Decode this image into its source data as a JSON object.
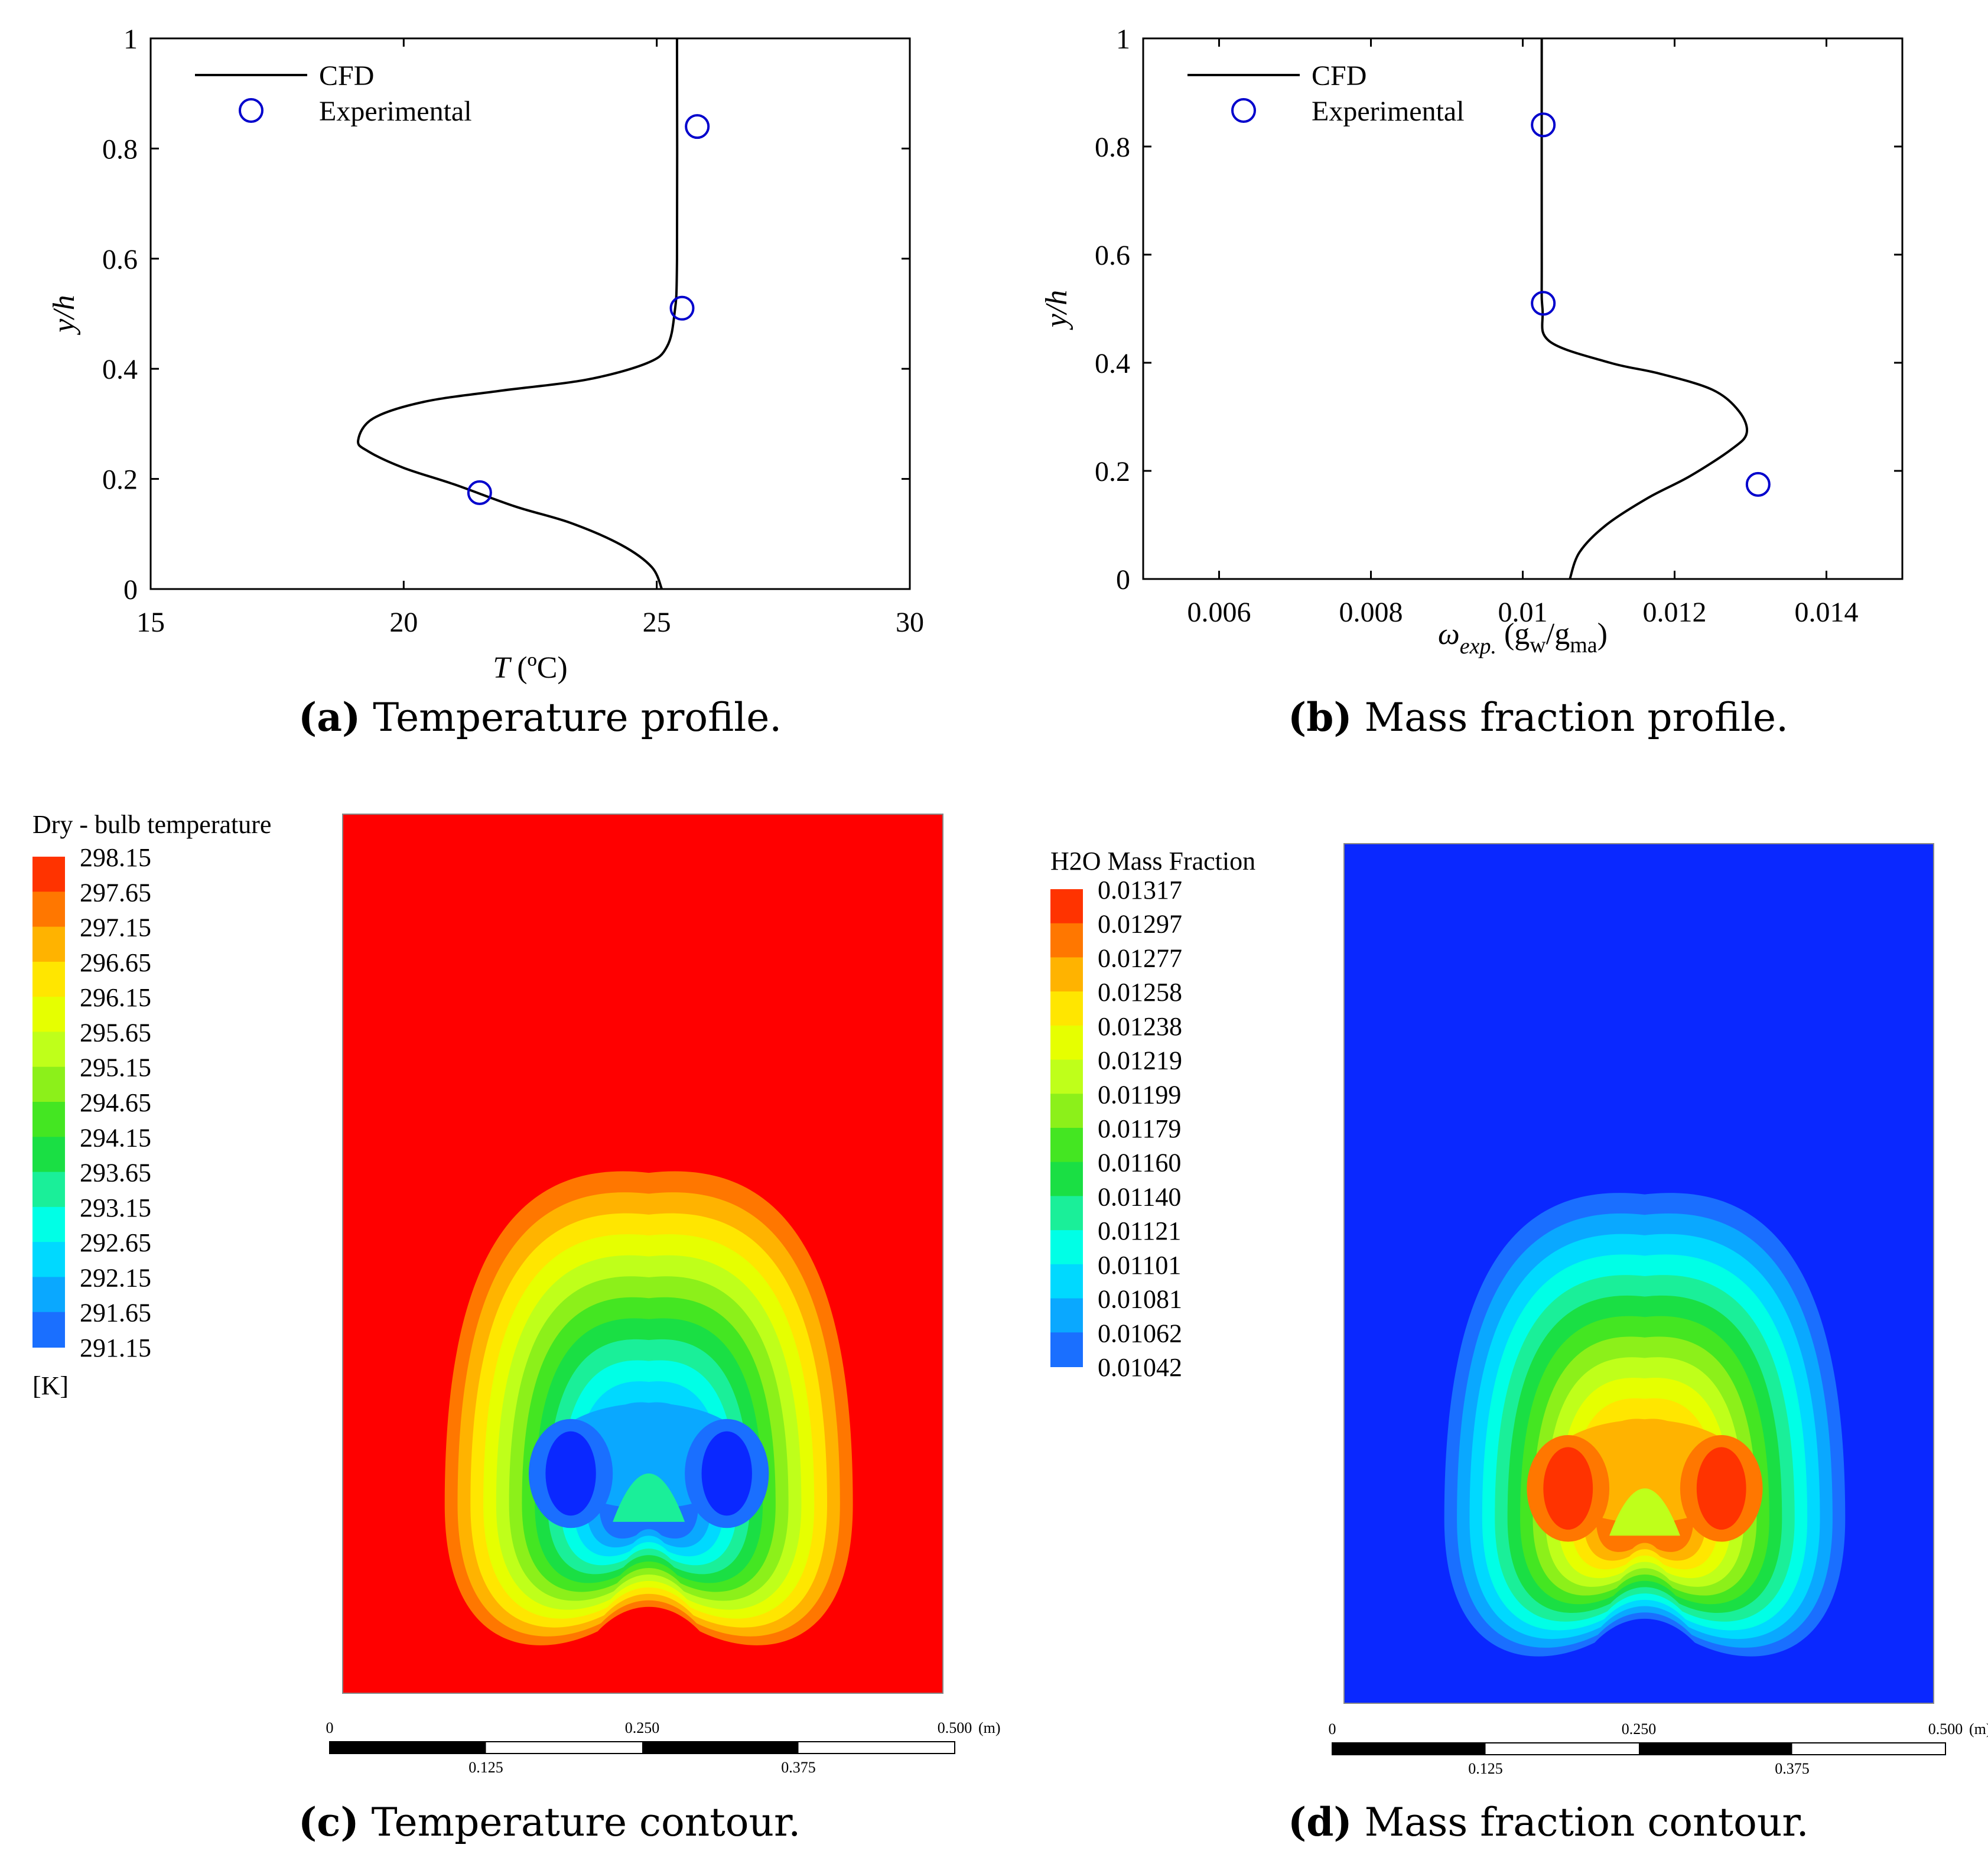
{
  "panels": {
    "a": {
      "caption_letter": "(a)",
      "caption_text": "Temperature profile.",
      "chart_data": {
        "type": "line",
        "title": "",
        "xlabel": "T",
        "xlabel_unit": "(ºC)",
        "ylabel": "y/h",
        "xlim": [
          15,
          30
        ],
        "ylim": [
          0,
          1
        ],
        "xticks": [
          "15",
          "20",
          "25",
          "30"
        ],
        "yticks": [
          "0",
          "0.2",
          "0.4",
          "0.6",
          "0.8",
          "1"
        ],
        "legend": {
          "position": "top-left",
          "line_label": "CFD",
          "marker_label": "Experimental"
        },
        "series": [
          {
            "name": "CFD",
            "kind": "line",
            "color": "#000000",
            "x": [
              25.1,
              24.9,
              24.3,
              23.3,
              22.2,
              21.0,
              20.0,
              19.3,
              19.1,
              19.4,
              20.4,
              21.9,
              23.6,
              24.8,
              25.2,
              25.35,
              25.4,
              25.4
            ],
            "y": [
              0.0,
              0.04,
              0.08,
              0.12,
              0.15,
              0.19,
              0.22,
              0.25,
              0.27,
              0.31,
              0.34,
              0.36,
              0.38,
              0.41,
              0.44,
              0.5,
              0.6,
              1.0
            ]
          },
          {
            "name": "Experimental",
            "kind": "scatter",
            "color": "#0000cc",
            "x": [
              21.5,
              25.5,
              25.8
            ],
            "y": [
              0.175,
              0.51,
              0.84
            ]
          }
        ]
      }
    },
    "b": {
      "caption_letter": "(b)",
      "caption_text": "Mass fraction profile.",
      "chart_data": {
        "type": "line",
        "title": "",
        "xlabel": "ω",
        "xlabel_sub": "exp.",
        "xlabel_unit_open": "(g",
        "xlabel_unit_sub1": "w",
        "xlabel_unit_mid": "/g",
        "xlabel_unit_sub2": "ma",
        "xlabel_unit_close": ")",
        "ylabel": "y/h",
        "xlim": [
          0.005,
          0.015
        ],
        "ylim": [
          0,
          1
        ],
        "xticks": [
          "0.006",
          "0.008",
          "0.01",
          "0.012",
          "0.014"
        ],
        "xtick_values": [
          0.006,
          0.008,
          0.01,
          0.012,
          0.014
        ],
        "yticks": [
          "0",
          "0.2",
          "0.4",
          "0.6",
          "0.8",
          "1"
        ],
        "legend": {
          "position": "top-left",
          "line_label": "CFD",
          "marker_label": "Experimental"
        },
        "series": [
          {
            "name": "CFD",
            "kind": "line",
            "color": "#000000",
            "x": [
              0.01062,
              0.01075,
              0.0111,
              0.01165,
              0.0122,
              0.01275,
              0.01295,
              0.01285,
              0.0125,
              0.0118,
              0.01115,
              0.01035,
              0.01026,
              0.01025,
              0.01025
            ],
            "y": [
              0.0,
              0.05,
              0.1,
              0.15,
              0.19,
              0.24,
              0.27,
              0.31,
              0.35,
              0.38,
              0.4,
              0.44,
              0.5,
              0.6,
              1.0
            ]
          },
          {
            "name": "Experimental",
            "kind": "scatter",
            "color": "#0000cc",
            "x": [
              0.01027,
              0.0131,
              0.01027
            ],
            "y": [
              0.84,
              0.175,
              0.51
            ]
          }
        ]
      }
    },
    "c": {
      "caption_letter": "(c)",
      "caption_text": "Temperature contour.",
      "legend_title": "Dry - bulb temperature",
      "unit": "[K]",
      "levels": [
        "298.15",
        "297.65",
        "297.15",
        "296.65",
        "296.15",
        "295.65",
        "295.15",
        "294.65",
        "294.15",
        "293.65",
        "293.15",
        "292.65",
        "292.15",
        "291.65",
        "291.15"
      ],
      "background_color": "#ff0000",
      "scale_labels": {
        "start": "0",
        "mid": "0.250",
        "end": "0.500",
        "unit": "(m)",
        "q1": "0.125",
        "q3": "0.375"
      }
    },
    "d": {
      "caption_letter": "(d)",
      "caption_text": "Mass fraction contour.",
      "legend_title": "H2O Mass Fraction",
      "levels": [
        "0.01317",
        "0.01297",
        "0.01277",
        "0.01258",
        "0.01238",
        "0.01219",
        "0.01199",
        "0.01179",
        "0.01160",
        "0.01140",
        "0.01121",
        "0.01101",
        "0.01081",
        "0.01062",
        "0.01042"
      ],
      "background_color": "#0a28ff",
      "scale_labels": {
        "start": "0",
        "mid": "0.250",
        "end": "0.500",
        "unit": "(m)",
        "q1": "0.125",
        "q3": "0.375"
      }
    }
  },
  "colormap": [
    "#ff3300",
    "#ff7700",
    "#ffb300",
    "#ffe600",
    "#e6ff00",
    "#bfff1a",
    "#8cf01a",
    "#44e622",
    "#1adf44",
    "#1aef99",
    "#00ffe6",
    "#00d9ff",
    "#0aa8ff",
    "#1a6fff",
    "#0a28ff"
  ]
}
